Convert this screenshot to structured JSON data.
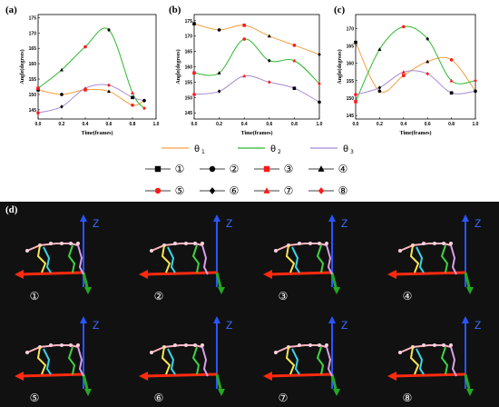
{
  "panels": [
    {
      "letter": "(a)"
    },
    {
      "letter": "(b)"
    },
    {
      "letter": "(c)"
    },
    {
      "letter": "(d)"
    }
  ],
  "colors": {
    "theta1": "#f5a040",
    "theta2": "#2eb82e",
    "theta3": "#a58bd4",
    "markerBlack": "#000000",
    "markerRed": "#ff1a1a",
    "photoBg": "#111111",
    "zAxis": "#2a55ff",
    "xAxis": "#ff2a10",
    "yAxis": "#22aa22"
  },
  "legend": {
    "lines": [
      {
        "symbol": "θ",
        "sub": "1",
        "color": "#f5a040"
      },
      {
        "symbol": "θ",
        "sub": "2",
        "color": "#2eb82e"
      },
      {
        "symbol": "θ",
        "sub": "3",
        "color": "#a58bd4"
      }
    ],
    "markers": [
      {
        "label": "①",
        "shape": "square",
        "color": "#000000"
      },
      {
        "label": "②",
        "shape": "circle",
        "color": "#000000"
      },
      {
        "label": "③",
        "shape": "square",
        "color": "#ff1a1a"
      },
      {
        "label": "④",
        "shape": "triangle",
        "color": "#000000"
      },
      {
        "label": "⑤",
        "shape": "circle",
        "color": "#ff1a1a"
      },
      {
        "label": "⑥",
        "shape": "diamond",
        "color": "#000000"
      },
      {
        "label": "⑦",
        "shape": "triangle",
        "color": "#ff1a1a"
      },
      {
        "label": "⑧",
        "shape": "diamond",
        "color": "#ff1a1a"
      }
    ]
  },
  "photos": {
    "z_label": "Z",
    "labels": [
      "①",
      "②",
      "③",
      "④",
      "⑤",
      "⑥",
      "⑦",
      "⑧"
    ]
  },
  "chart_data": [
    {
      "type": "line",
      "panel": "(a)",
      "xlabel": "Time(frames)",
      "ylabel": "Angle(degrees)",
      "xlim": [
        0,
        1.0
      ],
      "ylim": [
        142,
        176
      ],
      "xticks": [
        "0.0",
        "0.2",
        "0.4",
        "0.6",
        "0.8",
        "1.0"
      ],
      "yticks": [
        "145",
        "150",
        "155",
        "160",
        "165",
        "170",
        "175"
      ],
      "x": [
        0.0,
        0.2,
        0.4,
        0.6,
        0.8,
        0.9
      ],
      "series": [
        {
          "name": "θ1",
          "color": "#f5a040",
          "values": [
            151.5,
            150,
            151.5,
            151,
            146.5,
            148
          ]
        },
        {
          "name": "θ2",
          "color": "#2eb82e",
          "values": [
            152,
            158,
            165.5,
            171,
            150.5,
            145.5
          ]
        },
        {
          "name": "θ3",
          "color": "#a58bd4",
          "values": [
            144,
            146,
            152,
            153,
            149,
            148
          ]
        }
      ]
    },
    {
      "type": "line",
      "panel": "(b)",
      "xlabel": "Time(frames)",
      "ylabel": "Angle(degrees)",
      "xlim": [
        0,
        1.0
      ],
      "ylim": [
        143,
        177
      ],
      "xticks": [
        "0.0",
        "0.2",
        "0.4",
        "0.6",
        "0.8",
        "1.0"
      ],
      "yticks": [
        "145",
        "150",
        "155",
        "160",
        "165",
        "170",
        "175"
      ],
      "x": [
        0.0,
        0.2,
        0.4,
        0.6,
        0.8,
        1.0
      ],
      "series": [
        {
          "name": "θ1",
          "color": "#f5a040",
          "values": [
            174,
            172,
            173.5,
            170,
            167,
            164
          ]
        },
        {
          "name": "θ2",
          "color": "#2eb82e",
          "values": [
            158,
            158,
            169,
            162,
            162,
            154.5
          ]
        },
        {
          "name": "θ3",
          "color": "#a58bd4",
          "values": [
            151,
            152,
            157,
            155,
            153,
            148.5
          ]
        }
      ]
    },
    {
      "type": "line",
      "panel": "(c)",
      "xlabel": "Time(frames)",
      "ylabel": "Angle(degrees)",
      "xlim": [
        0,
        1.0
      ],
      "ylim": [
        144,
        174
      ],
      "xticks": [
        "0.0",
        "0.2",
        "0.4",
        "0.6",
        "0.8",
        "1.0"
      ],
      "yticks": [
        "145",
        "150",
        "155",
        "160",
        "165",
        "170"
      ],
      "x": [
        0.0,
        0.2,
        0.4,
        0.6,
        0.8,
        1.0
      ],
      "series": [
        {
          "name": "θ1",
          "color": "#f5a040",
          "values": [
            166,
            152,
            156.5,
            160.5,
            161,
            152
          ]
        },
        {
          "name": "θ2",
          "color": "#2eb82e",
          "values": [
            149,
            164,
            170.5,
            167,
            155,
            155
          ]
        },
        {
          "name": "θ3",
          "color": "#a58bd4",
          "values": [
            151,
            153,
            157.5,
            157,
            151.5,
            152
          ]
        }
      ]
    }
  ]
}
